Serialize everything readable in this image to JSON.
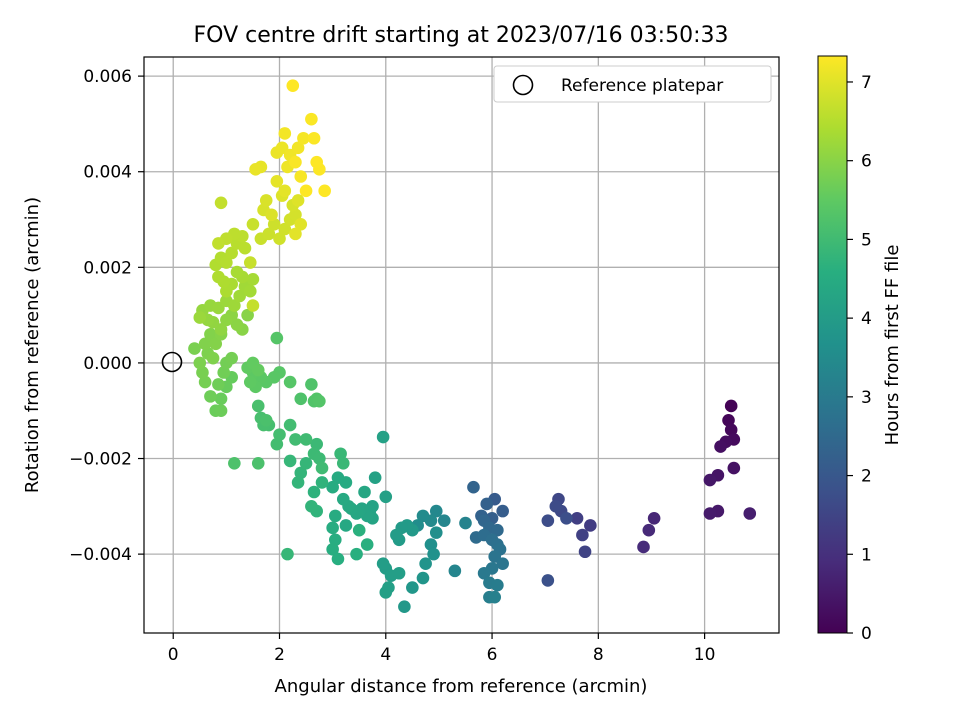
{
  "chart_data": {
    "type": "scatter",
    "title": "FOV centre drift starting at 2023/07/16 03:50:33",
    "xlabel": "Angular distance from reference (arcmin)",
    "ylabel": "Rotation from reference (arcmin)",
    "xlim": [
      -0.55,
      11.4
    ],
    "ylim": [
      -0.00565,
      0.0064
    ],
    "xticks": [
      0,
      2,
      4,
      6,
      8,
      10
    ],
    "xtick_labels": [
      "0",
      "2",
      "4",
      "6",
      "8",
      "10"
    ],
    "yticks": [
      -0.004,
      -0.002,
      0.0,
      0.002,
      0.004,
      0.006
    ],
    "ytick_labels": [
      "−0.004",
      "−0.002",
      "0.000",
      "0.002",
      "0.004",
      "0.006"
    ],
    "grid": true,
    "legend": {
      "position": "top-right",
      "entries": [
        "Reference platepar"
      ]
    },
    "reference_point": {
      "x": 0,
      "y": 0,
      "label": "Reference platepar"
    },
    "colorbar": {
      "label": "Hours from first FF file",
      "colormap": "viridis",
      "range": [
        0,
        7.33
      ],
      "ticks": [
        0,
        1,
        2,
        3,
        4,
        5,
        6,
        7
      ],
      "tick_labels": [
        "0",
        "1",
        "2",
        "3",
        "4",
        "5",
        "6",
        "7"
      ]
    },
    "points": [
      {
        "x": 10.5,
        "y": -0.0009,
        "t": 0.05
      },
      {
        "x": 10.45,
        "y": -0.0012,
        "t": 0.1
      },
      {
        "x": 10.5,
        "y": -0.0014,
        "t": 0.15
      },
      {
        "x": 10.55,
        "y": -0.0016,
        "t": 0.2
      },
      {
        "x": 10.4,
        "y": -0.00165,
        "t": 0.25
      },
      {
        "x": 10.3,
        "y": -0.00175,
        "t": 0.3
      },
      {
        "x": 10.55,
        "y": -0.0022,
        "t": 0.35
      },
      {
        "x": 10.25,
        "y": -0.00235,
        "t": 0.4
      },
      {
        "x": 10.1,
        "y": -0.00245,
        "t": 0.45
      },
      {
        "x": 10.25,
        "y": -0.0031,
        "t": 0.5
      },
      {
        "x": 10.1,
        "y": -0.00315,
        "t": 0.55
      },
      {
        "x": 10.85,
        "y": -0.00315,
        "t": 0.6
      },
      {
        "x": 9.05,
        "y": -0.00325,
        "t": 0.8
      },
      {
        "x": 8.95,
        "y": -0.0035,
        "t": 0.85
      },
      {
        "x": 8.85,
        "y": -0.00385,
        "t": 0.9
      },
      {
        "x": 7.85,
        "y": -0.0034,
        "t": 1.3
      },
      {
        "x": 7.6,
        "y": -0.00325,
        "t": 1.35
      },
      {
        "x": 7.7,
        "y": -0.0036,
        "t": 1.4
      },
      {
        "x": 7.75,
        "y": -0.00395,
        "t": 1.45
      },
      {
        "x": 7.25,
        "y": -0.00285,
        "t": 1.55
      },
      {
        "x": 7.3,
        "y": -0.0031,
        "t": 1.6
      },
      {
        "x": 7.2,
        "y": -0.003,
        "t": 1.65
      },
      {
        "x": 7.05,
        "y": -0.0033,
        "t": 1.7
      },
      {
        "x": 7.4,
        "y": -0.00325,
        "t": 1.75
      },
      {
        "x": 7.05,
        "y": -0.00455,
        "t": 1.8
      },
      {
        "x": 6.05,
        "y": -0.00285,
        "t": 2.1
      },
      {
        "x": 6.2,
        "y": -0.0031,
        "t": 2.15
      },
      {
        "x": 6.0,
        "y": -0.00325,
        "t": 2.2
      },
      {
        "x": 5.9,
        "y": -0.00295,
        "t": 2.25
      },
      {
        "x": 5.8,
        "y": -0.0032,
        "t": 2.3
      },
      {
        "x": 5.65,
        "y": -0.0026,
        "t": 2.35
      },
      {
        "x": 5.85,
        "y": -0.0033,
        "t": 2.4
      },
      {
        "x": 5.95,
        "y": -0.00345,
        "t": 2.45
      },
      {
        "x": 6.1,
        "y": -0.0035,
        "t": 2.5
      },
      {
        "x": 5.7,
        "y": -0.00365,
        "t": 2.55
      },
      {
        "x": 5.85,
        "y": -0.0036,
        "t": 2.6
      },
      {
        "x": 6.0,
        "y": -0.0037,
        "t": 2.65
      },
      {
        "x": 6.1,
        "y": -0.0038,
        "t": 2.7
      },
      {
        "x": 6.15,
        "y": -0.0039,
        "t": 2.75
      },
      {
        "x": 6.05,
        "y": -0.00405,
        "t": 2.8
      },
      {
        "x": 6.2,
        "y": -0.0042,
        "t": 2.85
      },
      {
        "x": 6.0,
        "y": -0.0043,
        "t": 2.9
      },
      {
        "x": 5.85,
        "y": -0.0044,
        "t": 2.95
      },
      {
        "x": 5.95,
        "y": -0.0046,
        "t": 3.0
      },
      {
        "x": 6.1,
        "y": -0.00465,
        "t": 3.05
      },
      {
        "x": 5.95,
        "y": -0.0049,
        "t": 3.1
      },
      {
        "x": 6.05,
        "y": -0.0049,
        "t": 3.15
      },
      {
        "x": 5.5,
        "y": -0.00335,
        "t": 3.25
      },
      {
        "x": 5.3,
        "y": -0.00435,
        "t": 3.3
      },
      {
        "x": 5.1,
        "y": -0.0033,
        "t": 3.35
      },
      {
        "x": 4.95,
        "y": -0.0031,
        "t": 3.4
      },
      {
        "x": 4.85,
        "y": -0.0033,
        "t": 3.45
      },
      {
        "x": 4.7,
        "y": -0.0032,
        "t": 3.5
      },
      {
        "x": 4.6,
        "y": -0.0034,
        "t": 3.55
      },
      {
        "x": 4.95,
        "y": -0.00355,
        "t": 3.6
      },
      {
        "x": 4.85,
        "y": -0.0038,
        "t": 3.65
      },
      {
        "x": 4.9,
        "y": -0.004,
        "t": 3.7
      },
      {
        "x": 4.75,
        "y": -0.0042,
        "t": 3.75
      },
      {
        "x": 4.7,
        "y": -0.0045,
        "t": 3.8
      },
      {
        "x": 4.5,
        "y": -0.0047,
        "t": 3.85
      },
      {
        "x": 4.35,
        "y": -0.0051,
        "t": 3.9
      },
      {
        "x": 4.5,
        "y": -0.0035,
        "t": 3.92
      },
      {
        "x": 4.4,
        "y": -0.0034,
        "t": 3.94
      },
      {
        "x": 4.3,
        "y": -0.00345,
        "t": 3.96
      },
      {
        "x": 4.25,
        "y": -0.0037,
        "t": 3.98
      },
      {
        "x": 4.2,
        "y": -0.0036,
        "t": 4.0
      },
      {
        "x": 4.0,
        "y": -0.0043,
        "t": 4.02
      },
      {
        "x": 3.95,
        "y": -0.0042,
        "t": 4.04
      },
      {
        "x": 4.1,
        "y": -0.00445,
        "t": 4.06
      },
      {
        "x": 4.25,
        "y": -0.0044,
        "t": 4.08
      },
      {
        "x": 4.05,
        "y": -0.0047,
        "t": 4.1
      },
      {
        "x": 4.0,
        "y": -0.0048,
        "t": 4.12
      },
      {
        "x": 4.0,
        "y": -0.0028,
        "t": 4.14
      },
      {
        "x": 3.95,
        "y": -0.00155,
        "t": 4.16
      },
      {
        "x": 3.8,
        "y": -0.0024,
        "t": 4.18
      },
      {
        "x": 3.75,
        "y": -0.003,
        "t": 4.2
      },
      {
        "x": 3.7,
        "y": -0.0031,
        "t": 4.22
      },
      {
        "x": 3.75,
        "y": -0.00325,
        "t": 4.24
      },
      {
        "x": 3.65,
        "y": -0.0032,
        "t": 4.26
      },
      {
        "x": 3.55,
        "y": -0.00305,
        "t": 4.28
      },
      {
        "x": 3.5,
        "y": -0.0031,
        "t": 4.3
      },
      {
        "x": 3.45,
        "y": -0.00315,
        "t": 4.32
      },
      {
        "x": 3.6,
        "y": -0.0027,
        "t": 4.34
      },
      {
        "x": 3.35,
        "y": -0.00305,
        "t": 4.36
      },
      {
        "x": 3.25,
        "y": -0.0034,
        "t": 4.38
      },
      {
        "x": 3.3,
        "y": -0.003,
        "t": 4.4
      },
      {
        "x": 3.2,
        "y": -0.00285,
        "t": 4.42
      },
      {
        "x": 3.25,
        "y": -0.0025,
        "t": 4.44
      },
      {
        "x": 3.1,
        "y": -0.0024,
        "t": 4.46
      },
      {
        "x": 3.0,
        "y": -0.0026,
        "t": 4.48
      },
      {
        "x": 3.05,
        "y": -0.0032,
        "t": 4.5
      },
      {
        "x": 3.0,
        "y": -0.00345,
        "t": 4.52
      },
      {
        "x": 3.05,
        "y": -0.0037,
        "t": 4.54
      },
      {
        "x": 3.0,
        "y": -0.0039,
        "t": 4.56
      },
      {
        "x": 3.1,
        "y": -0.0041,
        "t": 4.58
      },
      {
        "x": 3.45,
        "y": -0.004,
        "t": 4.6
      },
      {
        "x": 3.65,
        "y": -0.0038,
        "t": 4.62
      },
      {
        "x": 3.5,
        "y": -0.0035,
        "t": 4.64
      },
      {
        "x": 2.65,
        "y": -0.0027,
        "t": 4.7
      },
      {
        "x": 2.8,
        "y": -0.0025,
        "t": 4.72
      },
      {
        "x": 2.7,
        "y": -0.0031,
        "t": 4.74
      },
      {
        "x": 2.6,
        "y": -0.003,
        "t": 4.76
      },
      {
        "x": 2.35,
        "y": -0.0025,
        "t": 4.78
      },
      {
        "x": 2.4,
        "y": -0.0023,
        "t": 4.8
      },
      {
        "x": 2.5,
        "y": -0.0021,
        "t": 4.82
      },
      {
        "x": 2.2,
        "y": -0.00205,
        "t": 4.84
      },
      {
        "x": 2.15,
        "y": -0.004,
        "t": 4.86
      },
      {
        "x": 3.15,
        "y": -0.0019,
        "t": 4.88
      },
      {
        "x": 3.2,
        "y": -0.0021,
        "t": 4.9
      },
      {
        "x": 2.7,
        "y": -0.0017,
        "t": 4.92
      },
      {
        "x": 2.65,
        "y": -0.0019,
        "t": 4.94
      },
      {
        "x": 2.75,
        "y": -0.002,
        "t": 4.96
      },
      {
        "x": 2.8,
        "y": -0.0022,
        "t": 4.98
      },
      {
        "x": 2.5,
        "y": -0.0016,
        "t": 5.0
      },
      {
        "x": 2.3,
        "y": -0.0016,
        "t": 5.02
      },
      {
        "x": 2.2,
        "y": -0.0013,
        "t": 5.04
      },
      {
        "x": 1.95,
        "y": -0.0017,
        "t": 5.06
      },
      {
        "x": 2.0,
        "y": -0.0015,
        "t": 5.08
      },
      {
        "x": 1.8,
        "y": -0.0013,
        "t": 5.1
      },
      {
        "x": 1.7,
        "y": -0.0013,
        "t": 5.12
      },
      {
        "x": 1.65,
        "y": -0.00115,
        "t": 5.14
      },
      {
        "x": 1.6,
        "y": -0.0009,
        "t": 5.16
      },
      {
        "x": 1.75,
        "y": -0.0012,
        "t": 5.18
      },
      {
        "x": 1.6,
        "y": -0.0021,
        "t": 5.2
      },
      {
        "x": 1.15,
        "y": -0.0021,
        "t": 5.22
      },
      {
        "x": 2.4,
        "y": -0.00075,
        "t": 5.24
      },
      {
        "x": 2.6,
        "y": -0.00045,
        "t": 5.26
      },
      {
        "x": 2.65,
        "y": -0.0008,
        "t": 5.28
      },
      {
        "x": 2.7,
        "y": -0.00075,
        "t": 5.3
      },
      {
        "x": 2.75,
        "y": -0.0008,
        "t": 5.32
      },
      {
        "x": 1.95,
        "y": 0.00052,
        "t": 5.34
      },
      {
        "x": 2.2,
        "y": -0.0004,
        "t": 5.36
      },
      {
        "x": 2.0,
        "y": -0.0002,
        "t": 5.38
      },
      {
        "x": 1.9,
        "y": -0.0003,
        "t": 5.4
      },
      {
        "x": 1.75,
        "y": -0.0004,
        "t": 5.42
      },
      {
        "x": 1.65,
        "y": -0.0003,
        "t": 5.44
      },
      {
        "x": 1.55,
        "y": -0.0005,
        "t": 5.46
      },
      {
        "x": 1.5,
        "y": -0.0002,
        "t": 5.48
      },
      {
        "x": 1.45,
        "y": -0.0004,
        "t": 5.5
      },
      {
        "x": 1.4,
        "y": -0.0001,
        "t": 5.52
      },
      {
        "x": 1.5,
        "y": 0.0,
        "t": 5.54
      },
      {
        "x": 1.6,
        "y": -0.00015,
        "t": 5.56
      },
      {
        "x": 1.1,
        "y": -0.0003,
        "t": 5.58
      },
      {
        "x": 1.0,
        "y": -0.0005,
        "t": 5.6
      },
      {
        "x": 0.9,
        "y": -0.00075,
        "t": 5.62
      },
      {
        "x": 0.8,
        "y": -0.001,
        "t": 5.64
      },
      {
        "x": 0.9,
        "y": -0.001,
        "t": 5.66
      },
      {
        "x": 0.7,
        "y": -0.0007,
        "t": 5.68
      },
      {
        "x": 0.85,
        "y": -0.00045,
        "t": 5.7
      },
      {
        "x": 0.95,
        "y": -0.0002,
        "t": 5.72
      },
      {
        "x": 1.0,
        "y": 0.0,
        "t": 5.74
      },
      {
        "x": 1.1,
        "y": 0.0001,
        "t": 5.76
      },
      {
        "x": 0.6,
        "y": -0.0004,
        "t": 5.78
      },
      {
        "x": 0.55,
        "y": -0.0002,
        "t": 5.8
      },
      {
        "x": 0.4,
        "y": 0.0003,
        "t": 5.82
      },
      {
        "x": 0.5,
        "y": 0.0,
        "t": 5.84
      },
      {
        "x": 0.65,
        "y": 0.0002,
        "t": 5.86
      },
      {
        "x": 0.75,
        "y": 0.0001,
        "t": 5.88
      },
      {
        "x": 0.6,
        "y": 0.0004,
        "t": 5.9
      },
      {
        "x": 0.7,
        "y": 0.0006,
        "t": 5.92
      },
      {
        "x": 0.8,
        "y": 0.0004,
        "t": 5.94
      },
      {
        "x": 0.9,
        "y": 0.0006,
        "t": 5.96
      },
      {
        "x": 1.4,
        "y": 0.001,
        "t": 5.98
      },
      {
        "x": 1.3,
        "y": 0.0007,
        "t": 6.0
      },
      {
        "x": 1.2,
        "y": 0.0008,
        "t": 6.02
      },
      {
        "x": 1.1,
        "y": 0.001,
        "t": 6.04
      },
      {
        "x": 1.0,
        "y": 0.0009,
        "t": 6.06
      },
      {
        "x": 0.9,
        "y": 0.0007,
        "t": 6.08
      },
      {
        "x": 0.75,
        "y": 0.00085,
        "t": 6.1
      },
      {
        "x": 0.65,
        "y": 0.0009,
        "t": 6.12
      },
      {
        "x": 0.55,
        "y": 0.0011,
        "t": 6.14
      },
      {
        "x": 0.7,
        "y": 0.0012,
        "t": 6.16
      },
      {
        "x": 0.85,
        "y": 0.00115,
        "t": 6.18
      },
      {
        "x": 0.5,
        "y": 0.00095,
        "t": 6.2
      },
      {
        "x": 1.0,
        "y": 0.0013,
        "t": 6.22
      },
      {
        "x": 1.15,
        "y": 0.0012,
        "t": 6.24
      },
      {
        "x": 1.25,
        "y": 0.0014,
        "t": 6.26
      },
      {
        "x": 1.35,
        "y": 0.0016,
        "t": 6.28
      },
      {
        "x": 1.45,
        "y": 0.0015,
        "t": 6.3
      },
      {
        "x": 1.5,
        "y": 0.00175,
        "t": 6.32
      },
      {
        "x": 1.3,
        "y": 0.0018,
        "t": 6.34
      },
      {
        "x": 1.2,
        "y": 0.0019,
        "t": 6.36
      },
      {
        "x": 1.1,
        "y": 0.00165,
        "t": 6.38
      },
      {
        "x": 1.0,
        "y": 0.0015,
        "t": 6.4
      },
      {
        "x": 0.95,
        "y": 0.0017,
        "t": 6.42
      },
      {
        "x": 0.85,
        "y": 0.0018,
        "t": 6.44
      },
      {
        "x": 0.8,
        "y": 0.00205,
        "t": 6.46
      },
      {
        "x": 0.9,
        "y": 0.0022,
        "t": 6.48
      },
      {
        "x": 1.0,
        "y": 0.0021,
        "t": 6.5
      },
      {
        "x": 1.1,
        "y": 0.0023,
        "t": 6.52
      },
      {
        "x": 1.2,
        "y": 0.0025,
        "t": 6.54
      },
      {
        "x": 1.35,
        "y": 0.0024,
        "t": 6.56
      },
      {
        "x": 1.3,
        "y": 0.00265,
        "t": 6.58
      },
      {
        "x": 1.15,
        "y": 0.0027,
        "t": 6.6
      },
      {
        "x": 1.0,
        "y": 0.0026,
        "t": 6.62
      },
      {
        "x": 0.85,
        "y": 0.0025,
        "t": 6.64
      },
      {
        "x": 0.9,
        "y": 0.00335,
        "t": 6.66
      },
      {
        "x": 1.5,
        "y": 0.0012,
        "t": 6.68
      },
      {
        "x": 1.45,
        "y": 0.0021,
        "t": 6.7
      },
      {
        "x": 1.5,
        "y": 0.0029,
        "t": 6.72
      },
      {
        "x": 1.65,
        "y": 0.0026,
        "t": 6.74
      },
      {
        "x": 1.8,
        "y": 0.0027,
        "t": 6.76
      },
      {
        "x": 1.9,
        "y": 0.0029,
        "t": 6.78
      },
      {
        "x": 2.0,
        "y": 0.0026,
        "t": 6.8
      },
      {
        "x": 2.1,
        "y": 0.0028,
        "t": 6.82
      },
      {
        "x": 2.2,
        "y": 0.003,
        "t": 6.84
      },
      {
        "x": 2.3,
        "y": 0.0031,
        "t": 6.86
      },
      {
        "x": 2.25,
        "y": 0.0033,
        "t": 6.88
      },
      {
        "x": 1.7,
        "y": 0.0032,
        "t": 6.9
      },
      {
        "x": 1.75,
        "y": 0.0034,
        "t": 6.92
      },
      {
        "x": 1.85,
        "y": 0.0031,
        "t": 6.94
      },
      {
        "x": 2.05,
        "y": 0.0035,
        "t": 6.96
      },
      {
        "x": 2.35,
        "y": 0.0034,
        "t": 6.98
      },
      {
        "x": 2.4,
        "y": 0.0029,
        "t": 7.0
      },
      {
        "x": 2.3,
        "y": 0.0027,
        "t": 7.02
      },
      {
        "x": 2.1,
        "y": 0.0036,
        "t": 7.04
      },
      {
        "x": 1.95,
        "y": 0.0038,
        "t": 7.06
      },
      {
        "x": 1.65,
        "y": 0.0041,
        "t": 7.08
      },
      {
        "x": 1.55,
        "y": 0.00405,
        "t": 7.1
      },
      {
        "x": 1.95,
        "y": 0.0044,
        "t": 7.12
      },
      {
        "x": 2.05,
        "y": 0.0045,
        "t": 7.14
      },
      {
        "x": 2.15,
        "y": 0.0041,
        "t": 7.16
      },
      {
        "x": 2.2,
        "y": 0.00435,
        "t": 7.18
      },
      {
        "x": 2.35,
        "y": 0.0045,
        "t": 7.2
      },
      {
        "x": 2.1,
        "y": 0.0048,
        "t": 7.22
      },
      {
        "x": 2.45,
        "y": 0.0047,
        "t": 7.24
      },
      {
        "x": 2.4,
        "y": 0.0039,
        "t": 7.26
      },
      {
        "x": 2.3,
        "y": 0.0042,
        "t": 7.28
      },
      {
        "x": 2.6,
        "y": 0.0051,
        "t": 7.3
      },
      {
        "x": 2.65,
        "y": 0.0047,
        "t": 7.31
      },
      {
        "x": 2.75,
        "y": 0.00405,
        "t": 7.32
      },
      {
        "x": 2.7,
        "y": 0.0042,
        "t": 7.33
      },
      {
        "x": 2.25,
        "y": 0.0058,
        "t": 7.33
      },
      {
        "x": 2.85,
        "y": 0.0036,
        "t": 7.33
      },
      {
        "x": 2.5,
        "y": 0.0036,
        "t": 7.33
      }
    ]
  }
}
